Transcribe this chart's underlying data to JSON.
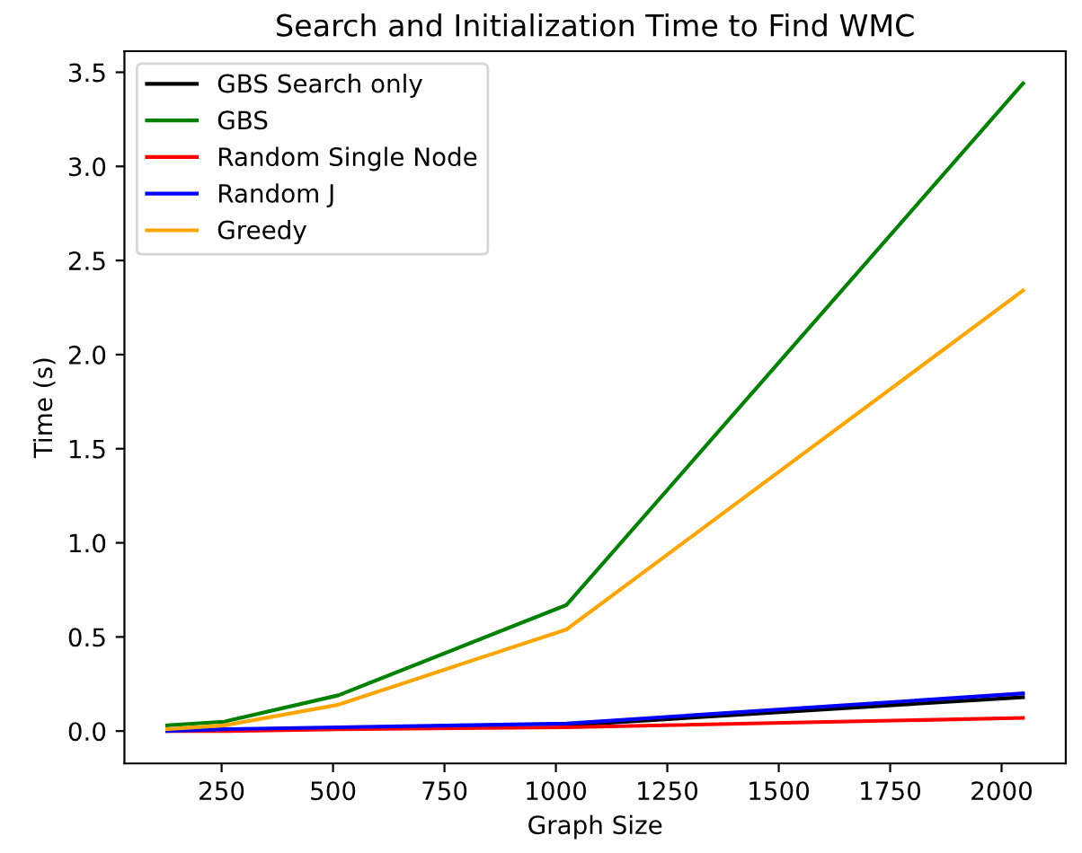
{
  "chart_data": {
    "type": "line",
    "title": "Search and Initialization Time to Find WMC",
    "xlabel": "Graph Size",
    "ylabel": "Time (s)",
    "x": [
      128,
      256,
      512,
      1024,
      2048
    ],
    "series": [
      {
        "name": "GBS Search only",
        "color": "#000000",
        "values": [
          null,
          null,
          null,
          0.03,
          0.18
        ]
      },
      {
        "name": "GBS",
        "color": "#008000",
        "values": [
          0.03,
          0.05,
          0.19,
          0.67,
          3.44
        ]
      },
      {
        "name": "Random Single Node",
        "color": "#ff0000",
        "values": [
          0.0,
          0.0,
          0.01,
          0.02,
          0.07
        ]
      },
      {
        "name": "Random J",
        "color": "#0000ff",
        "values": [
          0.0,
          0.01,
          0.02,
          0.04,
          0.2
        ]
      },
      {
        "name": "Greedy",
        "color": "#ffa500",
        "values": [
          0.01,
          0.03,
          0.14,
          0.54,
          2.34
        ]
      }
    ],
    "xlim": [
      32,
      2144
    ],
    "ylim": [
      -0.172,
      3.612
    ],
    "xticks": [
      250,
      500,
      750,
      1000,
      1250,
      1500,
      1750,
      2000
    ],
    "yticks": [
      {
        "value": 0,
        "label": "0.0"
      },
      0.5,
      {
        "value": 1,
        "label": "1.0"
      },
      1.5,
      {
        "value": 2,
        "label": "2.0"
      },
      2.5,
      {
        "value": 3,
        "label": "3.0"
      },
      3.5
    ],
    "grid": false,
    "legend": "top left"
  }
}
